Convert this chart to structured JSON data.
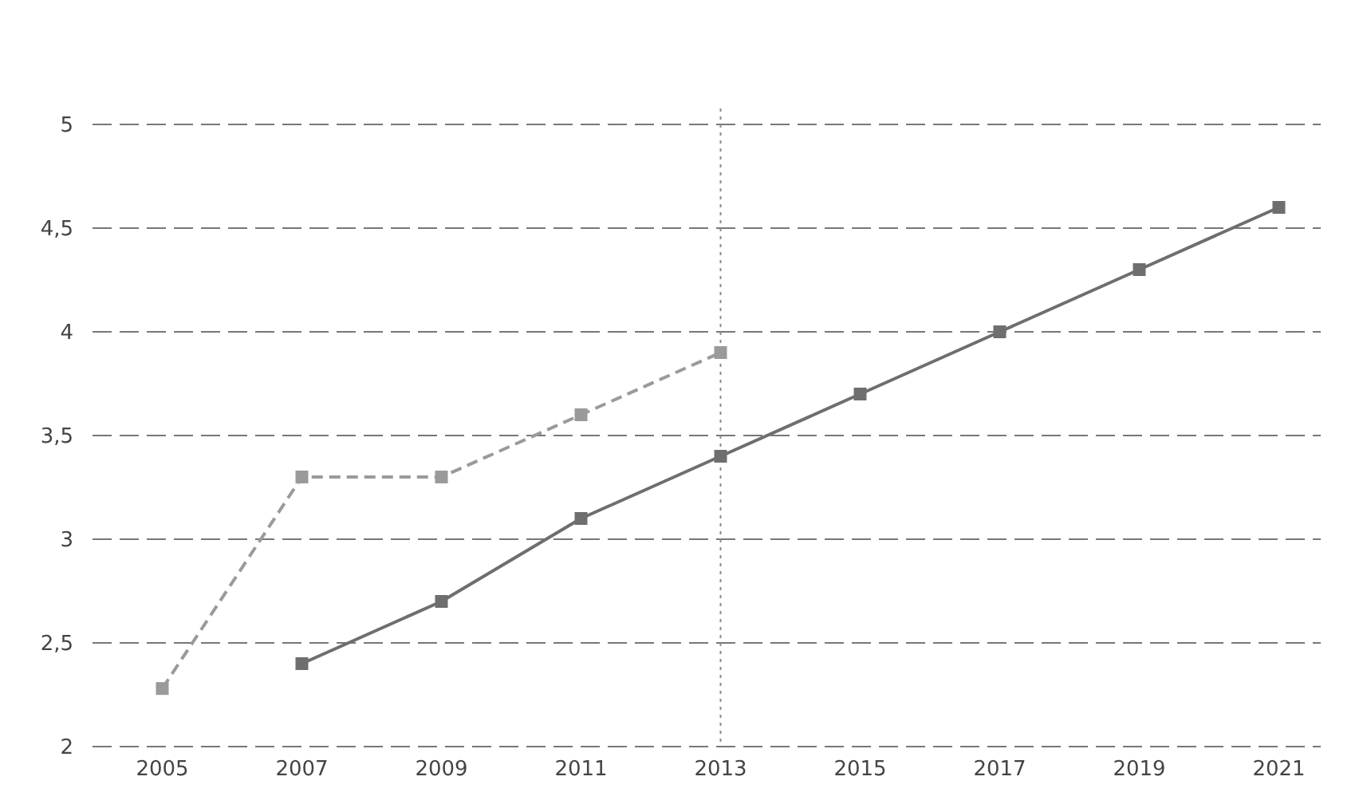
{
  "chart_data": {
    "type": "line",
    "x": [
      2005,
      2007,
      2009,
      2011,
      2013,
      2015,
      2017,
      2019,
      2021
    ],
    "xlim": [
      2004,
      2021.6
    ],
    "xticks": [
      2005,
      2007,
      2009,
      2011,
      2013,
      2015,
      2017,
      2019,
      2021
    ],
    "ylim": [
      2,
      5
    ],
    "yticks": [
      2,
      {
        "value": 2.5,
        "label": "2,5"
      },
      3,
      {
        "value": 3.5,
        "label": "3,5"
      },
      4,
      {
        "value": 4.5,
        "label": "4,5"
      },
      5
    ],
    "grid": "y",
    "series": [
      {
        "color": "#9a9a9a",
        "line_style": "dashed",
        "marker": "square",
        "values": [
          2.28,
          3.3,
          3.3,
          3.6,
          3.9,
          null,
          null,
          null,
          null
        ]
      },
      {
        "color": "#6e6e6e",
        "line_style": "solid",
        "marker": "square",
        "values": [
          null,
          2.4,
          2.7,
          3.1,
          3.4,
          3.7,
          4.0,
          4.3,
          4.6
        ]
      }
    ],
    "ref_lines": [
      {
        "axis": "x",
        "value": 2013,
        "color": "#8a8a8a",
        "line_style": "dotted"
      }
    ]
  }
}
